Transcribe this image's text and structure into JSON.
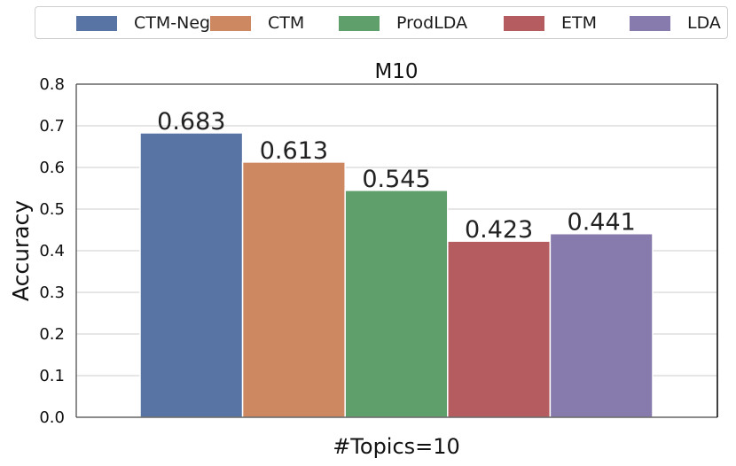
{
  "chart_data": {
    "type": "bar",
    "title": "M10",
    "xlabel": "#Topics=10",
    "ylabel": "Accuracy",
    "ylim": [
      0,
      0.8
    ],
    "yticks": [
      "0.0",
      "0.1",
      "0.2",
      "0.3",
      "0.4",
      "0.5",
      "0.6",
      "0.7",
      "0.8"
    ],
    "grid": true,
    "legend_position": "top",
    "series": [
      {
        "name": "CTM-Neg",
        "values": [
          0.683
        ],
        "label": "0.683",
        "color": "#5874a4"
      },
      {
        "name": "CTM",
        "values": [
          0.613
        ],
        "label": "0.613",
        "color": "#cd8862"
      },
      {
        "name": "ProdLDA",
        "values": [
          0.545
        ],
        "label": "0.545",
        "color": "#5e9f6c"
      },
      {
        "name": "ETM",
        "values": [
          0.423
        ],
        "label": "0.423",
        "color": "#b45c60"
      },
      {
        "name": "LDA",
        "values": [
          0.441
        ],
        "label": "0.441",
        "color": "#877aac"
      }
    ]
  }
}
